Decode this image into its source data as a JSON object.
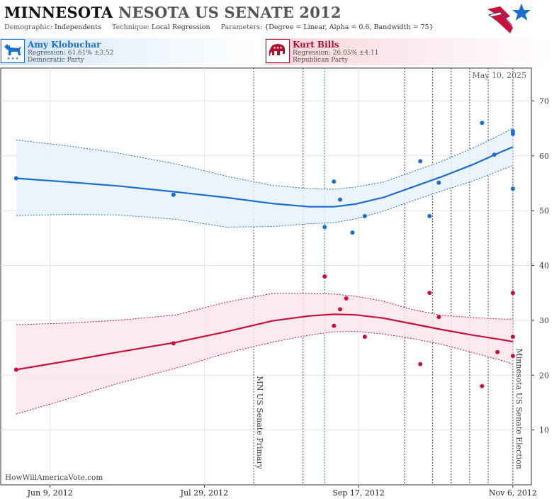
{
  "header": {
    "title_state": "MINNESOTA",
    "title_rest": "NESOTA US SENATE 2012",
    "demographic_label": "Demographic:",
    "demographic_value": "Independents",
    "technique_label": "Technique:",
    "technique_value": "Local Regression",
    "parameters_label": "Parameters:",
    "parameters_value": "{Degree = Linear, Alpha = 0.6, Bandwidth = 75}",
    "logo_icon": "star-flag-logo-icon"
  },
  "candidates": [
    {
      "name": "Amy Klobuchar",
      "regression": "Regression: 61.61% ±3.52",
      "party": "Democratic Party",
      "icon": "donkey-icon",
      "color": "#1a6fcf"
    },
    {
      "name": "Kurt Bills",
      "regression": "Regression: 26.05% ±4.11",
      "party": "Republican Party",
      "icon": "elephant-icon",
      "color": "#b0102e"
    }
  ],
  "date_stamp": "May 10, 2025",
  "credit": "HowWillAmericaVote.com",
  "chart_data": {
    "type": "line",
    "x_axis": {
      "type": "date",
      "min": "2012-05-24",
      "max": "2012-11-12",
      "ticks": [
        "Jun 9, 2012",
        "Jul 29, 2012",
        "Sep 17, 2012",
        "Nov 6, 2012"
      ]
    },
    "y_axis": {
      "min": 0,
      "max": 76,
      "ticks": [
        10,
        20,
        30,
        40,
        50,
        60,
        70
      ],
      "position": "right"
    },
    "grid": true,
    "colors": {
      "dem": "#1a6fcf",
      "rep": "#c8103b",
      "dem_band": "#e8f1fb",
      "rep_band": "#fde6eb"
    },
    "events": [
      {
        "date": "2012-08-14",
        "label": "MN US Senate Primary"
      },
      {
        "date": "2012-11-06",
        "label": "Minnesota US Senate Election"
      }
    ],
    "poll_lines": [
      {
        "date": "2012-08-30",
        "color": "#b0102e"
      },
      {
        "date": "2012-09-06",
        "color": "#3a7fbf"
      },
      {
        "date": "2012-10-02"
      },
      {
        "date": "2012-10-11"
      },
      {
        "date": "2012-10-17"
      },
      {
        "date": "2012-10-23"
      },
      {
        "date": "2012-10-29"
      }
    ],
    "series": [
      {
        "name": "Amy Klobuchar",
        "color": "#1a6fcf",
        "trend": [
          [
            "2012-05-29",
            55.9
          ],
          [
            "2012-06-15",
            55.2
          ],
          [
            "2012-07-01",
            54.5
          ],
          [
            "2012-07-20",
            53.4
          ],
          [
            "2012-08-05",
            52.4
          ],
          [
            "2012-08-20",
            51.3
          ],
          [
            "2012-09-01",
            50.7
          ],
          [
            "2012-09-09",
            50.7
          ],
          [
            "2012-09-16",
            51.2
          ],
          [
            "2012-09-25",
            52.4
          ],
          [
            "2012-10-04",
            54.2
          ],
          [
            "2012-10-14",
            56.2
          ],
          [
            "2012-10-24",
            58.4
          ],
          [
            "2012-11-03",
            60.9
          ],
          [
            "2012-11-06",
            61.6
          ]
        ],
        "upper": [
          [
            "2012-05-29",
            62.9
          ],
          [
            "2012-06-15",
            61.8
          ],
          [
            "2012-07-01",
            60.5
          ],
          [
            "2012-07-20",
            58.5
          ],
          [
            "2012-08-05",
            56.3
          ],
          [
            "2012-08-20",
            54.6
          ],
          [
            "2012-09-01",
            54.0
          ],
          [
            "2012-09-09",
            53.9
          ],
          [
            "2012-09-16",
            54.3
          ],
          [
            "2012-09-25",
            55.2
          ],
          [
            "2012-10-04",
            57.0
          ],
          [
            "2012-10-14",
            59.0
          ],
          [
            "2012-10-24",
            61.4
          ],
          [
            "2012-11-03",
            64.1
          ],
          [
            "2012-11-06",
            65.1
          ]
        ],
        "lower": [
          [
            "2012-05-29",
            49.1
          ],
          [
            "2012-06-15",
            49.3
          ],
          [
            "2012-07-01",
            49.2
          ],
          [
            "2012-07-20",
            48.4
          ],
          [
            "2012-08-05",
            47.0
          ],
          [
            "2012-08-20",
            47.1
          ],
          [
            "2012-09-01",
            47.6
          ],
          [
            "2012-09-09",
            47.8
          ],
          [
            "2012-09-16",
            48.5
          ],
          [
            "2012-09-25",
            49.9
          ],
          [
            "2012-10-04",
            51.7
          ],
          [
            "2012-10-14",
            53.6
          ],
          [
            "2012-10-24",
            55.4
          ],
          [
            "2012-11-03",
            57.6
          ],
          [
            "2012-11-06",
            58.2
          ]
        ],
        "polls": [
          [
            "2012-05-29",
            55.9
          ],
          [
            "2012-07-19",
            52.9
          ],
          [
            "2012-09-06",
            47.0
          ],
          [
            "2012-09-09",
            55.3
          ],
          [
            "2012-09-11",
            52.0
          ],
          [
            "2012-09-15",
            46.0
          ],
          [
            "2012-09-19",
            49.0
          ],
          [
            "2012-10-07",
            59.0
          ],
          [
            "2012-10-10",
            49.0
          ],
          [
            "2012-10-13",
            55.1
          ],
          [
            "2012-10-27",
            66.0
          ],
          [
            "2012-10-31",
            60.2
          ],
          [
            "2012-11-06",
            64.5
          ],
          [
            "2012-11-06",
            64.0
          ],
          [
            "2012-11-06",
            54.0
          ]
        ]
      },
      {
        "name": "Kurt Bills",
        "color": "#c8103b",
        "trend": [
          [
            "2012-05-29",
            21.0
          ],
          [
            "2012-06-15",
            22.6
          ],
          [
            "2012-07-01",
            24.2
          ],
          [
            "2012-07-20",
            26.0
          ],
          [
            "2012-08-05",
            27.9
          ],
          [
            "2012-08-20",
            29.9
          ],
          [
            "2012-09-01",
            30.8
          ],
          [
            "2012-09-09",
            31.1
          ],
          [
            "2012-09-16",
            31.0
          ],
          [
            "2012-09-25",
            30.4
          ],
          [
            "2012-10-04",
            29.4
          ],
          [
            "2012-10-14",
            28.3
          ],
          [
            "2012-10-24",
            27.3
          ],
          [
            "2012-11-03",
            26.4
          ],
          [
            "2012-11-06",
            26.1
          ]
        ],
        "upper": [
          [
            "2012-05-29",
            29.2
          ],
          [
            "2012-06-15",
            29.5
          ],
          [
            "2012-07-01",
            30.0
          ],
          [
            "2012-07-20",
            31.0
          ],
          [
            "2012-08-05",
            33.3
          ],
          [
            "2012-08-20",
            34.9
          ],
          [
            "2012-09-01",
            34.9
          ],
          [
            "2012-09-09",
            34.8
          ],
          [
            "2012-09-16",
            34.4
          ],
          [
            "2012-09-25",
            33.5
          ],
          [
            "2012-10-04",
            32.0
          ],
          [
            "2012-10-14",
            30.9
          ],
          [
            "2012-10-24",
            30.5
          ],
          [
            "2012-11-03",
            30.2
          ],
          [
            "2012-11-06",
            30.2
          ]
        ],
        "lower": [
          [
            "2012-05-29",
            12.9
          ],
          [
            "2012-06-15",
            15.7
          ],
          [
            "2012-07-01",
            18.5
          ],
          [
            "2012-07-20",
            21.3
          ],
          [
            "2012-08-05",
            24.0
          ],
          [
            "2012-08-20",
            26.0
          ],
          [
            "2012-09-01",
            27.3
          ],
          [
            "2012-09-09",
            27.9
          ],
          [
            "2012-09-16",
            28.0
          ],
          [
            "2012-09-25",
            27.5
          ],
          [
            "2012-10-04",
            26.7
          ],
          [
            "2012-10-14",
            25.6
          ],
          [
            "2012-10-24",
            24.1
          ],
          [
            "2012-11-03",
            22.6
          ],
          [
            "2012-11-06",
            22.0
          ]
        ],
        "polls": [
          [
            "2012-05-29",
            21.0
          ],
          [
            "2012-07-19",
            25.8
          ],
          [
            "2012-09-06",
            38.0
          ],
          [
            "2012-09-09",
            29.0
          ],
          [
            "2012-09-11",
            32.0
          ],
          [
            "2012-09-13",
            34.0
          ],
          [
            "2012-09-19",
            27.0
          ],
          [
            "2012-10-07",
            22.0
          ],
          [
            "2012-10-10",
            35.0
          ],
          [
            "2012-10-13",
            30.6
          ],
          [
            "2012-10-27",
            18.0
          ],
          [
            "2012-11-01",
            24.2
          ],
          [
            "2012-11-06",
            35.0
          ],
          [
            "2012-11-06",
            27.0
          ],
          [
            "2012-11-06",
            23.5
          ]
        ]
      }
    ]
  }
}
